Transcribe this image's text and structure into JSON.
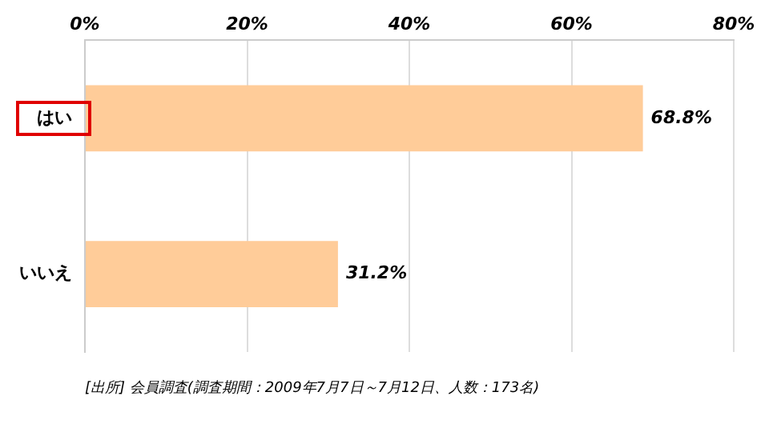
{
  "chart_data": {
    "type": "bar",
    "orientation": "horizontal",
    "categories": [
      "はい",
      "いいえ"
    ],
    "values": [
      68.8,
      31.2
    ],
    "color": "#ffcc99",
    "value_labels": [
      "68.8%",
      "31.2%"
    ],
    "xlim": [
      0,
      80
    ],
    "xticks": [
      {
        "value": 0,
        "label": "0%"
      },
      {
        "value": 20,
        "label": "20%"
      },
      {
        "value": 40,
        "label": "40%"
      },
      {
        "value": 60,
        "label": "60%"
      },
      {
        "value": 80,
        "label": "80%"
      }
    ],
    "grid": "x",
    "legend": false,
    "annotations": [
      "[出所] 会員調査(調査期間：2009年7月7日～7月12日、人数：173名)"
    ]
  }
}
